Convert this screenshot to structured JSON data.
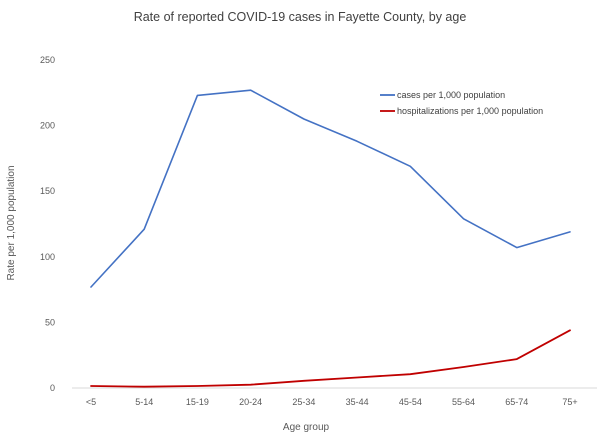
{
  "chart_data": {
    "type": "line",
    "title": "Rate of reported COVID-19 cases in Fayette County, by age",
    "xlabel": "Age group",
    "ylabel": "Rate per 1,000 population",
    "categories": [
      "<5",
      "5-14",
      "15-19",
      "20-24",
      "25-34",
      "35-44",
      "45-54",
      "55-64",
      "65-74",
      "75+"
    ],
    "ylim": [
      0,
      250
    ],
    "yticks": [
      0,
      50,
      100,
      150,
      200,
      250
    ],
    "grid": false,
    "legend_position": "top-right",
    "series": [
      {
        "name": "cases per 1,000 population",
        "color": "#4472C4",
        "values": [
          77,
          121,
          223,
          227,
          205,
          188,
          169,
          129,
          107,
          119
        ]
      },
      {
        "name": "hospitalizations per 1,000 population",
        "color": "#C00000",
        "values": [
          1.5,
          1,
          1.5,
          2.5,
          5.5,
          8,
          10.5,
          16,
          22,
          44
        ]
      }
    ]
  }
}
